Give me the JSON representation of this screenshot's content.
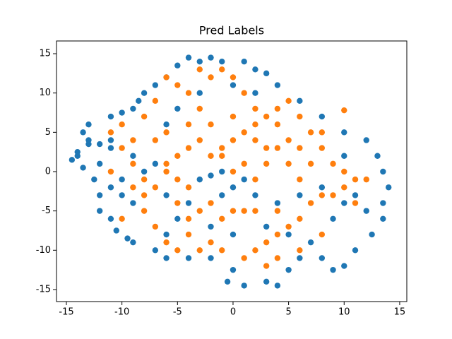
{
  "chart_data": {
    "type": "scatter",
    "title": "Pred Labels",
    "xlim": [
      -15.89,
      15.64
    ],
    "ylim": [
      -16.53,
      16.62
    ],
    "xticks": [
      -15,
      -10,
      -5,
      0,
      5,
      10,
      15
    ],
    "yticks": [
      -15,
      -10,
      -5,
      0,
      5,
      10,
      15
    ],
    "grid": false,
    "series": [
      {
        "color": "#1f77b4",
        "x": [
          -14.5,
          -14,
          -13.5,
          -13,
          -13.5,
          -13,
          -12.5,
          -12,
          -12,
          -11,
          -10.5,
          -9.5,
          -9,
          -11,
          -10,
          -9,
          -8.5,
          -8,
          -7,
          -6,
          -5,
          -4,
          -3,
          -2,
          -1,
          1,
          2,
          3,
          4,
          6,
          8,
          10,
          12,
          13,
          13.5,
          14,
          13.5,
          13.5,
          12.5,
          11,
          10,
          9,
          8,
          6,
          5,
          4,
          3,
          1,
          -0.5,
          0,
          -2,
          -4,
          -6,
          -7,
          -6,
          -9,
          -10,
          -11,
          -12,
          -11,
          -11,
          -12,
          -10,
          -1,
          0,
          1,
          2,
          -3,
          -2,
          -1,
          3,
          5,
          7,
          9,
          10,
          11,
          12,
          10,
          8,
          -5,
          -4,
          -6,
          -7,
          -8,
          -9,
          -5,
          -6,
          -3,
          0,
          2,
          -13,
          -14,
          6,
          4,
          -2,
          0
        ],
        "values": [
          1.5,
          2.5,
          0.5,
          3.5,
          5,
          6,
          -1,
          -3,
          -5,
          -6,
          -7.5,
          -8.5,
          -9,
          7,
          7.5,
          8,
          9,
          10,
          11,
          12,
          13.5,
          14.5,
          14,
          14.5,
          14,
          14,
          13,
          12.5,
          11,
          9,
          7,
          5,
          4,
          2,
          0,
          -2,
          -4,
          -6,
          -8,
          -10,
          -12,
          -12.5,
          -11,
          -11,
          -12.5,
          -14.5,
          -14,
          -14.5,
          -14,
          -12.5,
          -11,
          -11,
          -11,
          -10,
          -8,
          -4,
          -3,
          -2,
          1,
          3,
          4,
          3.5,
          -1,
          -3,
          -2,
          -1,
          -3,
          -1,
          -0.5,
          0,
          -7,
          -8,
          -9,
          -6,
          -4,
          -3,
          -5,
          2,
          -2,
          -6,
          -4,
          -3,
          1,
          0,
          2,
          8,
          6,
          10,
          11,
          10,
          4,
          2,
          -3,
          -4,
          -7,
          -8
        ]
      },
      {
        "color": "#ff7f0e",
        "x": [
          -11,
          -10,
          -9,
          -10,
          -9,
          -8,
          -7,
          -8,
          -7,
          -10,
          -11,
          -6,
          -5,
          -4,
          -3,
          -2,
          -1,
          -4,
          -3,
          -2,
          -5,
          -4,
          -6,
          -5,
          -4,
          -3,
          -2,
          -1,
          0,
          1,
          2,
          3,
          4,
          5,
          6,
          7,
          8,
          9,
          10,
          11,
          10,
          8,
          7,
          6,
          5,
          4,
          3,
          2,
          1,
          3,
          -3,
          -4,
          -5,
          -2,
          -1,
          0,
          1,
          2,
          0,
          -2,
          -4,
          -6,
          -7,
          -8,
          -7,
          -6,
          -3,
          4,
          6,
          5,
          4,
          3,
          2,
          1,
          0,
          -1,
          2,
          4,
          6,
          7,
          8,
          10,
          12,
          11,
          9,
          8,
          6,
          4,
          -1,
          -6,
          -5,
          0,
          1,
          3,
          5,
          2,
          -8,
          -9
        ],
        "values": [
          5,
          6,
          4,
          3,
          -2,
          -3,
          -2,
          -5,
          -7,
          -6,
          0,
          -9,
          -10,
          -8,
          -10,
          -9,
          -10,
          -6,
          -5,
          -4,
          -4,
          -2,
          1,
          2,
          3,
          4,
          2,
          3,
          4,
          5,
          6,
          7,
          8,
          9,
          7,
          5,
          3,
          1,
          0,
          -1,
          -2,
          -3,
          -4,
          -6,
          -7,
          -8,
          -9,
          -10,
          -11,
          -12,
          8,
          10,
          11,
          12,
          13,
          12,
          10,
          8,
          7,
          6,
          6,
          5,
          4,
          7,
          9,
          12,
          13,
          6,
          3,
          1,
          3,
          1,
          -1,
          -5,
          -5,
          -6,
          -5,
          -5,
          -1,
          1,
          5,
          7.8,
          -1,
          -4,
          -3,
          -8,
          -10,
          -11,
          2,
          0,
          -1,
          0,
          1,
          3,
          4,
          4,
          -1,
          1
        ]
      }
    ]
  }
}
